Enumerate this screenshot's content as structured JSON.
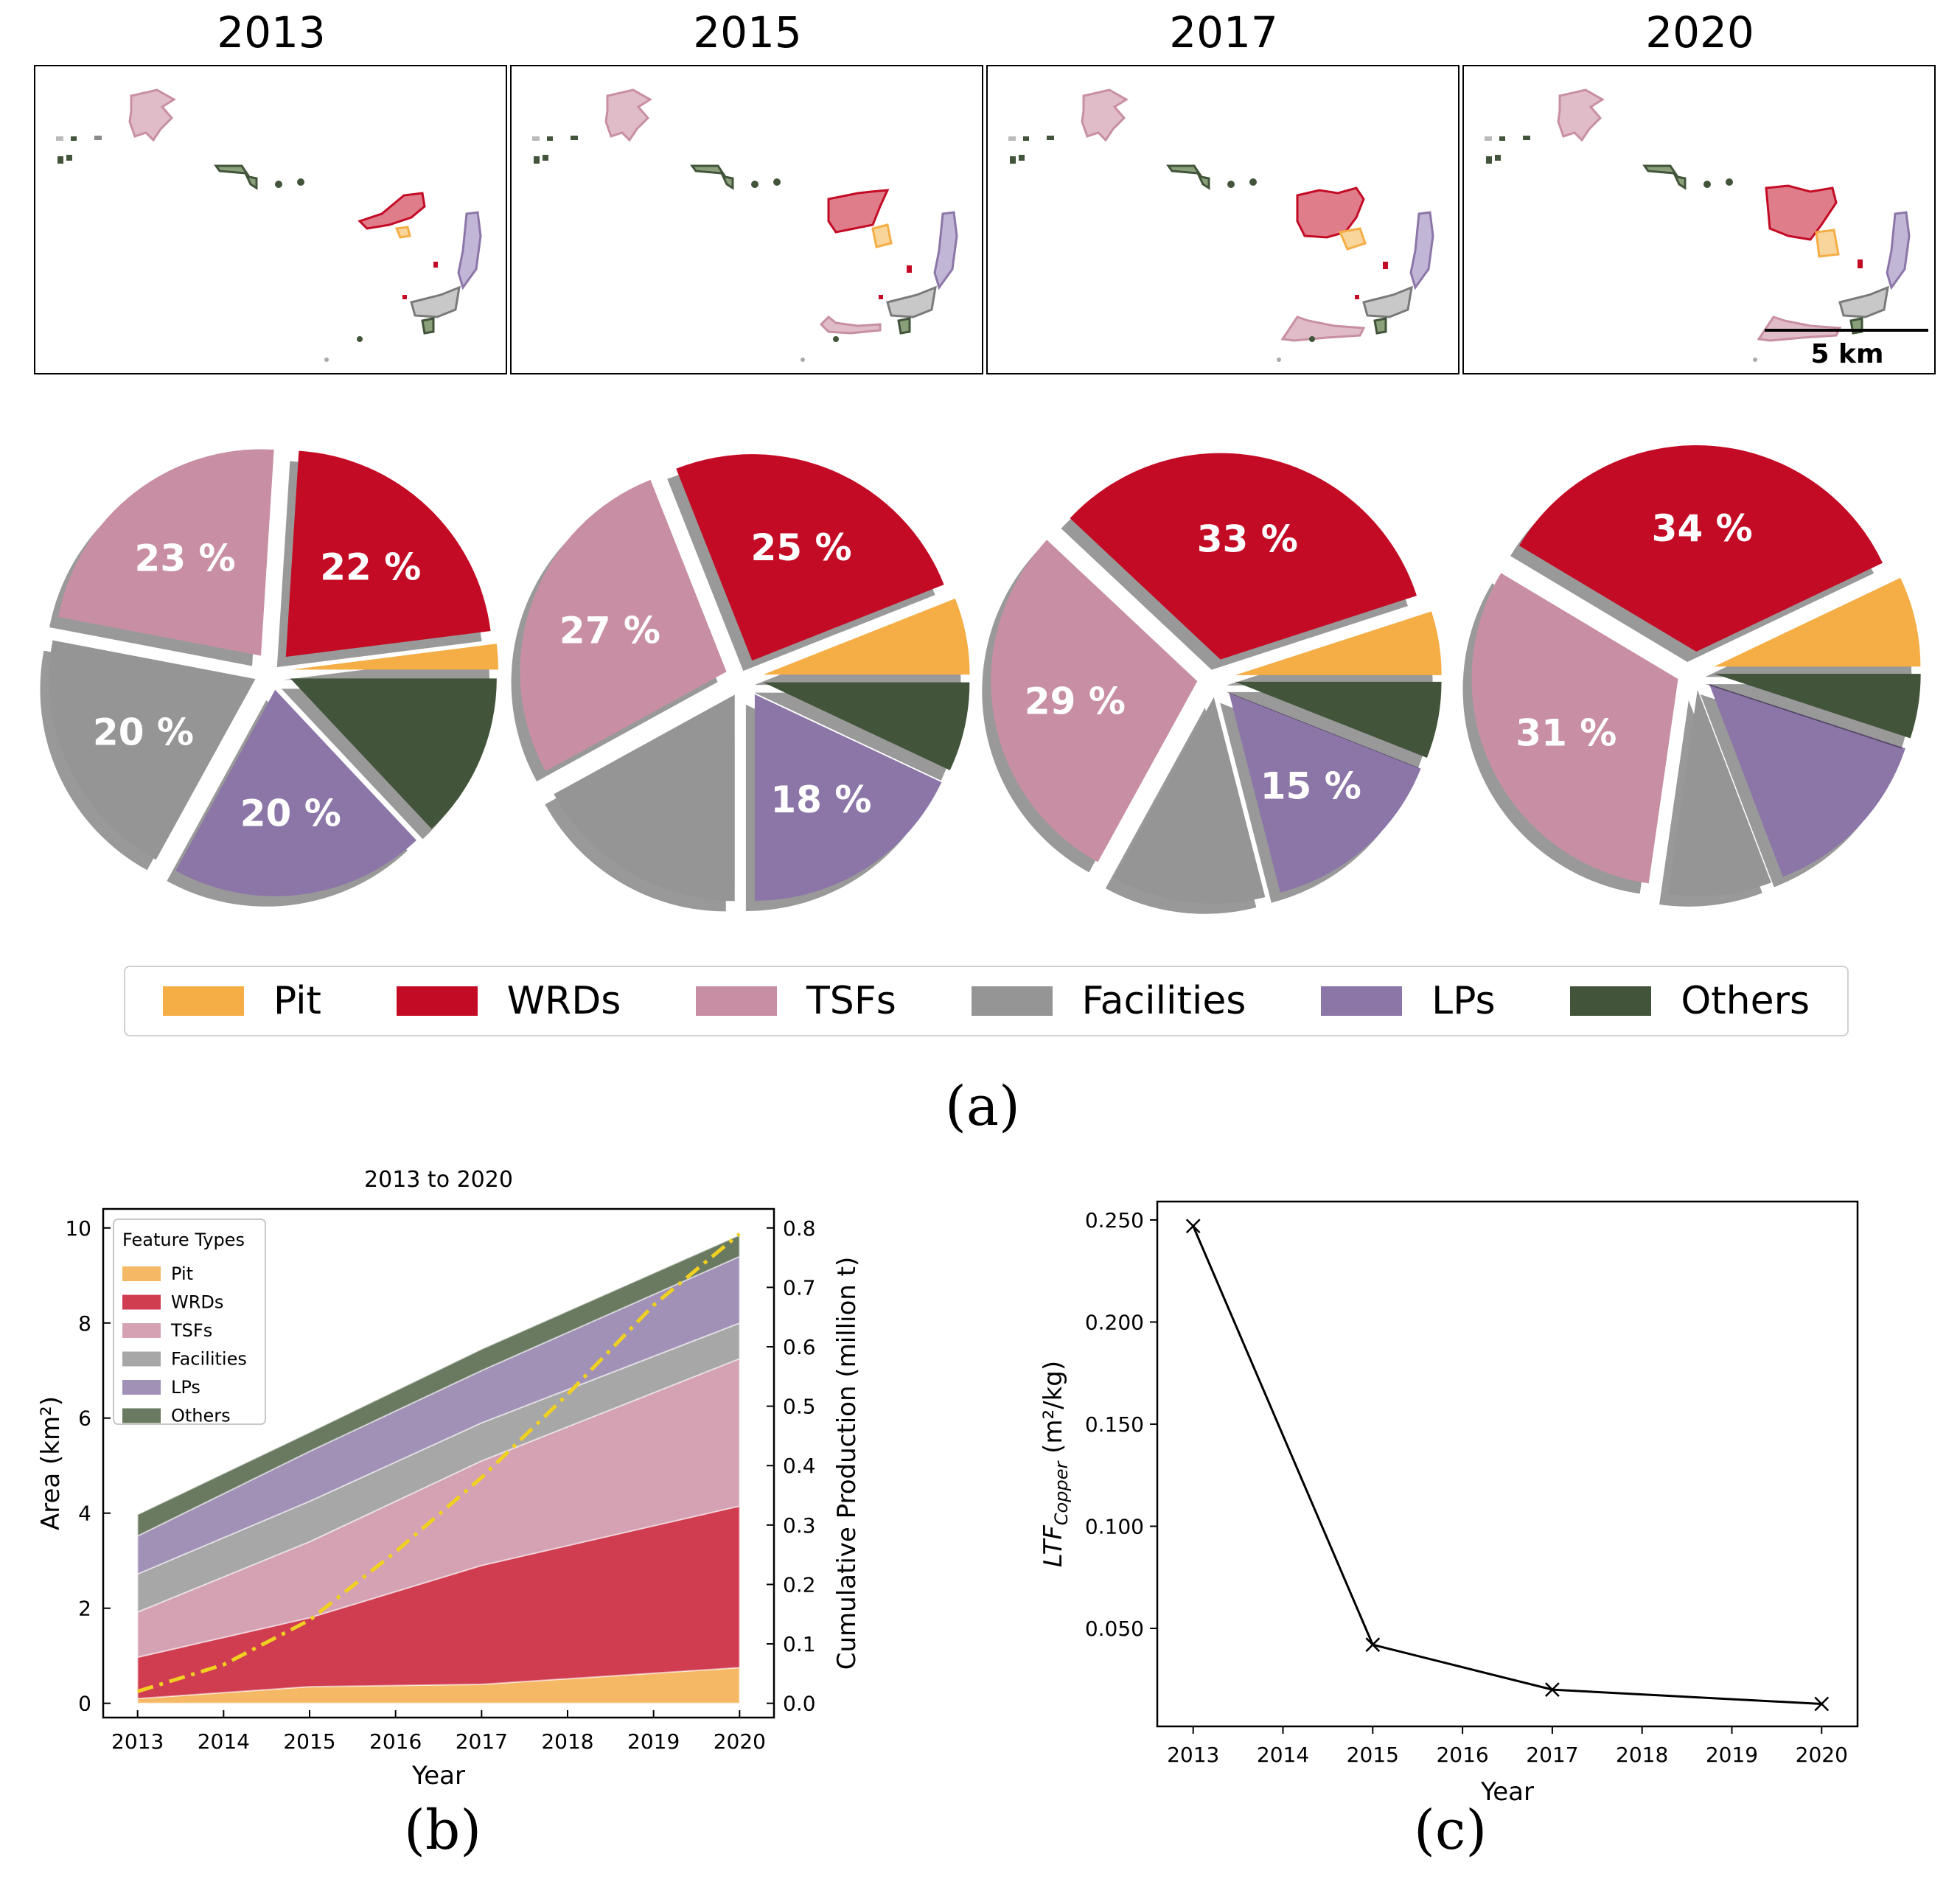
{
  "captions": {
    "a": "(a)",
    "b": "(b)",
    "c": "(c)"
  },
  "maps": {
    "years": [
      "2013",
      "2015",
      "2017",
      "2020"
    ],
    "scale_label": "5 km"
  },
  "legend": {
    "items": [
      {
        "label": "Pit",
        "color": "#f5ad45"
      },
      {
        "label": "WRDs",
        "color": "#c40b25"
      },
      {
        "label": "TSFs",
        "color": "#c88fa4"
      },
      {
        "label": "Facilities",
        "color": "#959595"
      },
      {
        "label": "LPs",
        "color": "#8c76a8"
      },
      {
        "label": "Others",
        "color": "#42543a"
      }
    ]
  },
  "chart_data": [
    {
      "type": "pie",
      "panel": "a",
      "categories": [
        "Pit",
        "WRDs",
        "TSFs",
        "Facilities",
        "LPs",
        "Others"
      ],
      "colors": [
        "#f5ad45",
        "#c40b25",
        "#c88fa4",
        "#959595",
        "#8c76a8",
        "#42543a"
      ],
      "pies": [
        {
          "title": "2013",
          "values": [
            2,
            22,
            23,
            20,
            20,
            13
          ],
          "labels": [
            "",
            "22 %",
            "23 %",
            "20 %",
            "20 %",
            ""
          ]
        },
        {
          "title": "2015",
          "values": [
            6,
            25,
            27,
            17,
            18,
            7
          ],
          "labels": [
            "",
            "25 %",
            "27 %",
            "",
            "18 %",
            ""
          ]
        },
        {
          "title": "2017",
          "values": [
            5,
            33,
            29,
            12,
            15,
            6
          ],
          "labels": [
            "",
            "33 %",
            "29 %",
            "",
            "15 %",
            ""
          ]
        },
        {
          "title": "2020",
          "values": [
            7,
            34,
            31,
            8,
            14,
            5
          ],
          "labels": [
            "",
            "34 %",
            "31 %",
            "",
            "",
            ""
          ]
        }
      ]
    },
    {
      "type": "area",
      "panel": "b",
      "title": "2013 to 2020",
      "xlabel": "Year",
      "ylabel": "Area (km²)",
      "y2label": "Cumulative Production (million t)",
      "x": [
        2013,
        2015,
        2017,
        2020
      ],
      "xticks": [
        2013,
        2014,
        2015,
        2016,
        2017,
        2018,
        2019,
        2020
      ],
      "ylim": [
        -0.3,
        10.4
      ],
      "yticks": [
        0,
        2,
        4,
        6,
        8,
        10
      ],
      "y2lim": [
        -0.024,
        0.832
      ],
      "y2ticks": [
        0.0,
        0.1,
        0.2,
        0.3,
        0.4,
        0.5,
        0.6,
        0.7,
        0.8
      ],
      "legend_title": "Feature Types",
      "series": [
        {
          "name": "Pit",
          "color": "#f5b965",
          "values": [
            0.1,
            0.35,
            0.4,
            0.75
          ]
        },
        {
          "name": "WRDs",
          "color": "#d03c50",
          "values": [
            0.87,
            1.45,
            2.5,
            3.4
          ]
        },
        {
          "name": "TSFs",
          "color": "#d4a2b3",
          "values": [
            0.95,
            1.6,
            2.2,
            3.1
          ]
        },
        {
          "name": "Facilities",
          "color": "#a7a7a7",
          "values": [
            0.8,
            0.85,
            0.8,
            0.75
          ]
        },
        {
          "name": "LPs",
          "color": "#a191b7",
          "values": [
            0.8,
            1.05,
            1.1,
            1.4
          ]
        },
        {
          "name": "Others",
          "color": "#6a7a61",
          "values": [
            0.45,
            0.4,
            0.45,
            0.45
          ]
        }
      ],
      "line": {
        "color": "#f0d020",
        "x": [
          2013,
          2014,
          2015,
          2016,
          2017,
          2018,
          2019,
          2020
        ],
        "values": [
          0.02,
          0.065,
          0.14,
          0.255,
          0.38,
          0.52,
          0.67,
          0.79
        ]
      }
    },
    {
      "type": "line",
      "panel": "c",
      "xlabel": "Year",
      "ylabel_main": "LTF",
      "ylabel_sub": "Copper",
      "ylabel_unit": "(m²/kg)",
      "x": [
        2013,
        2015,
        2017,
        2020
      ],
      "values": [
        0.247,
        0.042,
        0.02,
        0.013
      ],
      "xticks": [
        2013,
        2014,
        2015,
        2016,
        2017,
        2018,
        2019,
        2020
      ],
      "yticks": [
        0.05,
        0.1,
        0.15,
        0.2,
        0.25
      ],
      "ytick_labels": [
        "0.050",
        "0.100",
        "0.150",
        "0.200",
        "0.250"
      ],
      "ylim": [
        0.002,
        0.259
      ]
    }
  ]
}
